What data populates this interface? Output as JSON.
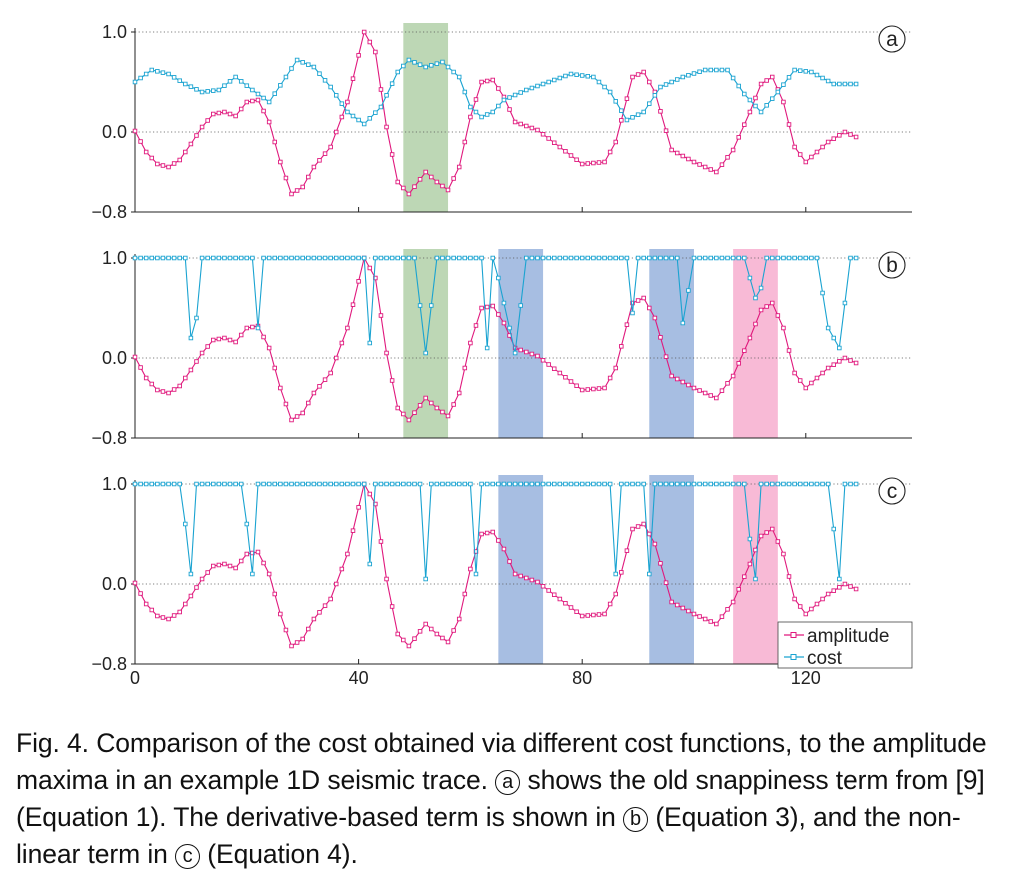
{
  "figure": {
    "panels": [
      {
        "label": "a",
        "y_ticks": [
          "1.0",
          "0.0",
          "−0.8"
        ]
      },
      {
        "label": "b",
        "y_ticks": [
          "1.0",
          "0.0",
          "−0.8"
        ]
      },
      {
        "label": "c",
        "y_ticks": [
          "1.0",
          "0.0",
          "−0.8"
        ]
      }
    ],
    "x_ticks": [
      "0",
      "40",
      "80",
      "120"
    ],
    "legend": {
      "amplitude": "amplitude",
      "cost": "cost"
    }
  },
  "chart_data": {
    "type": "line",
    "title": "",
    "xlabel": "",
    "ylabel": "",
    "xlim": [
      0,
      139
    ],
    "ylim": [
      -0.8,
      1.0
    ],
    "x_ticks": [
      0,
      40,
      80,
      120
    ],
    "y_ticks": [
      1.0,
      0.0,
      -0.8
    ],
    "grid": "dotted horizontal lines at 1.0 and 0.0",
    "legend_position": "bottom-right of panel c",
    "colors": {
      "amplitude": "#e0197d",
      "cost": "#1aa3d1",
      "green_band": "#a7c99c",
      "blue_band": "#8aa8d8",
      "pink_band": "#f5a3c8"
    },
    "amplitude": [
      [
        0,
        0.01
      ],
      [
        2,
        -0.2
      ],
      [
        4,
        -0.32
      ],
      [
        6,
        -0.35
      ],
      [
        8,
        -0.28
      ],
      [
        10,
        -0.12
      ],
      [
        12,
        0.05
      ],
      [
        14,
        0.18
      ],
      [
        16,
        0.2
      ],
      [
        18,
        0.16
      ],
      [
        20,
        0.3
      ],
      [
        22,
        0.32
      ],
      [
        24,
        0.1
      ],
      [
        26,
        -0.3
      ],
      [
        28,
        -0.62
      ],
      [
        30,
        -0.55
      ],
      [
        32,
        -0.35
      ],
      [
        35,
        -0.15
      ],
      [
        38,
        0.3
      ],
      [
        41,
        1.0
      ],
      [
        43,
        0.8
      ],
      [
        45,
        0.05
      ],
      [
        47,
        -0.5
      ],
      [
        49,
        -0.62
      ],
      [
        52,
        -0.4
      ],
      [
        54,
        -0.5
      ],
      [
        56,
        -0.58
      ],
      [
        58,
        -0.35
      ],
      [
        60,
        0.15
      ],
      [
        62,
        0.5
      ],
      [
        64,
        0.52
      ],
      [
        66,
        0.35
      ],
      [
        68,
        0.1
      ],
      [
        72,
        0.02
      ],
      [
        76,
        -0.15
      ],
      [
        80,
        -0.32
      ],
      [
        84,
        -0.3
      ],
      [
        86,
        -0.1
      ],
      [
        89,
        0.55
      ],
      [
        91,
        0.6
      ],
      [
        93,
        0.4
      ],
      [
        96,
        -0.18
      ],
      [
        100,
        -0.3
      ],
      [
        104,
        -0.4
      ],
      [
        107,
        -0.18
      ],
      [
        110,
        0.2
      ],
      [
        112,
        0.48
      ],
      [
        114,
        0.55
      ],
      [
        116,
        0.3
      ],
      [
        118,
        -0.15
      ],
      [
        120,
        -0.3
      ],
      [
        124,
        -0.1
      ],
      [
        127,
        0.0
      ],
      [
        129,
        -0.05
      ]
    ],
    "series": [
      {
        "name": "amplitude",
        "panel": "a"
      },
      {
        "name": "cost",
        "panel": "a",
        "values": [
          [
            0,
            0.5
          ],
          [
            3,
            0.62
          ],
          [
            6,
            0.58
          ],
          [
            9,
            0.48
          ],
          [
            12,
            0.4
          ],
          [
            15,
            0.42
          ],
          [
            18,
            0.55
          ],
          [
            21,
            0.42
          ],
          [
            24,
            0.3
          ],
          [
            27,
            0.55
          ],
          [
            29,
            0.72
          ],
          [
            32,
            0.65
          ],
          [
            35,
            0.45
          ],
          [
            38,
            0.2
          ],
          [
            41,
            0.08
          ],
          [
            44,
            0.25
          ],
          [
            47,
            0.6
          ],
          [
            49,
            0.72
          ],
          [
            52,
            0.65
          ],
          [
            55,
            0.7
          ],
          [
            58,
            0.55
          ],
          [
            60,
            0.25
          ],
          [
            62,
            0.15
          ],
          [
            64,
            0.2
          ],
          [
            66,
            0.32
          ],
          [
            70,
            0.42
          ],
          [
            74,
            0.5
          ],
          [
            78,
            0.58
          ],
          [
            82,
            0.55
          ],
          [
            85,
            0.4
          ],
          [
            88,
            0.12
          ],
          [
            91,
            0.2
          ],
          [
            94,
            0.45
          ],
          [
            98,
            0.55
          ],
          [
            102,
            0.62
          ],
          [
            106,
            0.62
          ],
          [
            109,
            0.38
          ],
          [
            112,
            0.2
          ],
          [
            115,
            0.4
          ],
          [
            118,
            0.62
          ],
          [
            121,
            0.6
          ],
          [
            125,
            0.48
          ],
          [
            129,
            0.48
          ]
        ]
      },
      {
        "name": "cost",
        "panel": "b",
        "values": [
          [
            0,
            1.0
          ],
          [
            9,
            1.0
          ],
          [
            10,
            0.2
          ],
          [
            11,
            0.4
          ],
          [
            12,
            1.0
          ],
          [
            21,
            1.0
          ],
          [
            22,
            0.3
          ],
          [
            23,
            1.0
          ],
          [
            40,
            1.0
          ],
          [
            41,
            1.0
          ],
          [
            42,
            0.15
          ],
          [
            43,
            1.0
          ],
          [
            50,
            1.0
          ],
          [
            52,
            0.05
          ],
          [
            54,
            1.0
          ],
          [
            62,
            1.0
          ],
          [
            63,
            0.1
          ],
          [
            64,
            1.0
          ],
          [
            65,
            0.8
          ],
          [
            68,
            0.05
          ],
          [
            70,
            1.0
          ],
          [
            88,
            1.0
          ],
          [
            89,
            0.45
          ],
          [
            90,
            1.0
          ],
          [
            97,
            1.0
          ],
          [
            98,
            0.35
          ],
          [
            100,
            1.0
          ],
          [
            109,
            1.0
          ],
          [
            111,
            0.6
          ],
          [
            112,
            0.7
          ],
          [
            113,
            1.0
          ],
          [
            122,
            1.0
          ],
          [
            124,
            0.3
          ],
          [
            126,
            0.1
          ],
          [
            128,
            1.0
          ],
          [
            129,
            1.0
          ]
        ]
      },
      {
        "name": "cost",
        "panel": "c",
        "values": [
          [
            0,
            1.0
          ],
          [
            8,
            1.0
          ],
          [
            9,
            0.6
          ],
          [
            10,
            0.1
          ],
          [
            11,
            1.0
          ],
          [
            19,
            1.0
          ],
          [
            20,
            0.6
          ],
          [
            21,
            0.1
          ],
          [
            22,
            1.0
          ],
          [
            40,
            1.0
          ],
          [
            41,
            1.0
          ],
          [
            42,
            0.2
          ],
          [
            43,
            1.0
          ],
          [
            51,
            1.0
          ],
          [
            52,
            0.05
          ],
          [
            53,
            1.0
          ],
          [
            60,
            1.0
          ],
          [
            61,
            0.1
          ],
          [
            62,
            1.0
          ],
          [
            85,
            1.0
          ],
          [
            86,
            0.1
          ],
          [
            87,
            1.0
          ],
          [
            91,
            1.0
          ],
          [
            92,
            0.1
          ],
          [
            93,
            1.0
          ],
          [
            109,
            1.0
          ],
          [
            110,
            0.45
          ],
          [
            111,
            0.05
          ],
          [
            112,
            1.0
          ],
          [
            124,
            1.0
          ],
          [
            125,
            0.55
          ],
          [
            126,
            0.05
          ],
          [
            127,
            1.0
          ],
          [
            129,
            1.0
          ]
        ]
      }
    ],
    "bands": {
      "a": [
        {
          "x0": 48,
          "x1": 56,
          "color": "green"
        }
      ],
      "b": [
        {
          "x0": 48,
          "x1": 56,
          "color": "green"
        },
        {
          "x0": 65,
          "x1": 73,
          "color": "blue"
        },
        {
          "x0": 92,
          "x1": 100,
          "color": "blue"
        },
        {
          "x0": 107,
          "x1": 115,
          "color": "pink"
        }
      ],
      "c": [
        {
          "x0": 65,
          "x1": 73,
          "color": "blue"
        },
        {
          "x0": 92,
          "x1": 100,
          "color": "blue"
        },
        {
          "x0": 107,
          "x1": 115,
          "color": "pink"
        }
      ]
    }
  },
  "caption": {
    "fig_label": "Fig. 4.",
    "part1": "Comparison of the cost obtained via different cost functions, to the amplitude maxima in an example 1D seismic trace.",
    "circle_a": "a",
    "part2": "shows the old snappiness term from [9] (Equation 1). The derivative-based term is shown in",
    "circle_b": "b",
    "part3": "(Equation 3), and the non-linear term in",
    "circle_c": "c",
    "part4": "(Equation 4)."
  }
}
